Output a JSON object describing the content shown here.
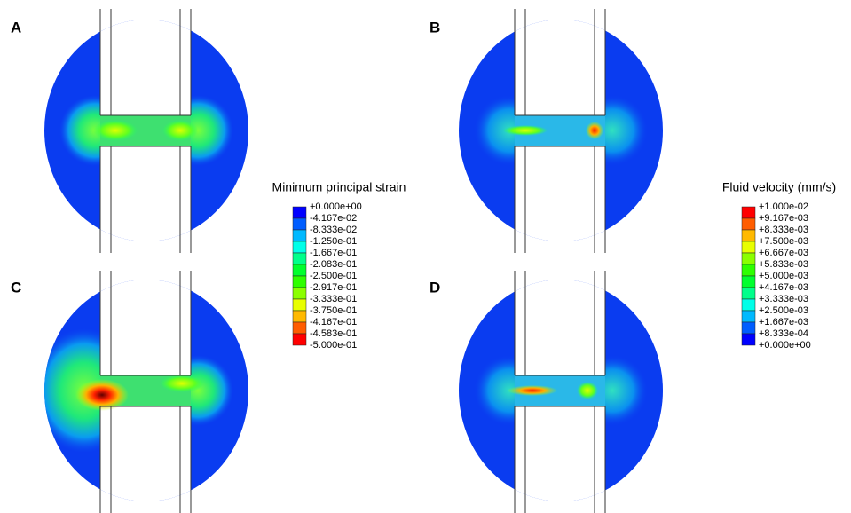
{
  "panels": [
    {
      "label": "A"
    },
    {
      "label": "B"
    },
    {
      "label": "C"
    },
    {
      "label": "D"
    }
  ],
  "legends": [
    {
      "title": "Minimum principal strain",
      "labels": [
        "+0.000e+00",
        "-4.167e-02",
        "-8.333e-02",
        "-1.250e-01",
        "-1.667e-01",
        "-2.083e-01",
        "-2.500e-01",
        "-2.917e-01",
        "-3.333e-01",
        "-3.750e-01",
        "-4.167e-01",
        "-4.583e-01",
        "-5.000e-01"
      ],
      "colors": [
        "#0000ff",
        "#005dff",
        "#00b9ff",
        "#00ffe8",
        "#00ff8b",
        "#00ff2e",
        "#2eff00",
        "#8bff00",
        "#e8ff00",
        "#ffb900",
        "#ff5d00",
        "#ff0000"
      ]
    },
    {
      "title": "Fluid velocity (mm/s)",
      "labels": [
        "+1.000e-02",
        "+9.167e-03",
        "+8.333e-03",
        "+7.500e-03",
        "+6.667e-03",
        "+5.833e-03",
        "+5.000e-03",
        "+4.167e-03",
        "+3.333e-03",
        "+2.500e-03",
        "+1.667e-03",
        "+8.333e-04",
        "+0.000e+00"
      ],
      "colors": [
        "#ff0000",
        "#ff5d00",
        "#ffb900",
        "#e8ff00",
        "#8bff00",
        "#2eff00",
        "#00ff2e",
        "#00ff8b",
        "#00ffe8",
        "#00b9ff",
        "#005dff",
        "#0000ff"
      ]
    }
  ]
}
